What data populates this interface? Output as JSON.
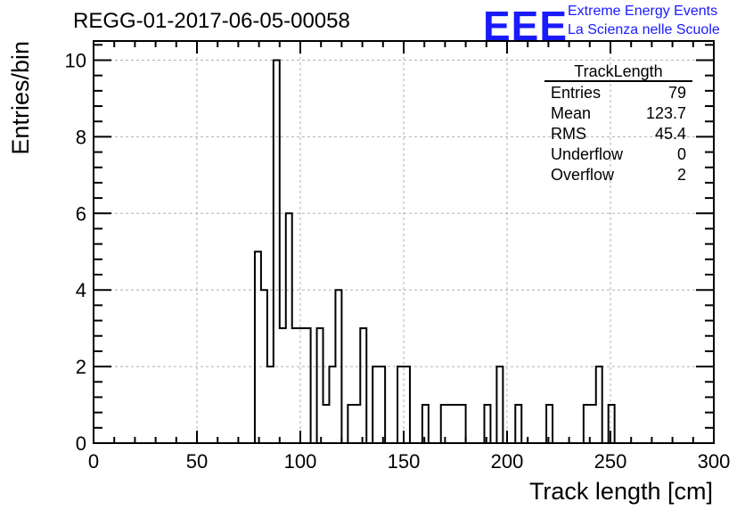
{
  "header": {
    "run_title": "REGG-01-2017-06-05-00058",
    "logo_text": "EEE",
    "brand_line1": "Extreme Energy Events",
    "brand_line2": "La Scienza nelle Scuole"
  },
  "stats": {
    "title": "TrackLength",
    "rows": [
      {
        "label": "Entries",
        "value": "79"
      },
      {
        "label": "Mean",
        "value": "123.7"
      },
      {
        "label": "RMS",
        "value": "45.4"
      },
      {
        "label": "Underflow",
        "value": "0"
      },
      {
        "label": "Overflow",
        "value": "2"
      }
    ]
  },
  "colors": {
    "brand": "#1a1aff",
    "line": "#000000",
    "grid": "#b0b0b0"
  },
  "chart_data": {
    "type": "bar",
    "xlabel": "Track length [cm]",
    "ylabel": "Entries/bin",
    "xlim": [
      0,
      300
    ],
    "ylim": [
      0,
      10.5
    ],
    "grid": true,
    "x_ticks": [
      0,
      50,
      100,
      150,
      200,
      250,
      300
    ],
    "y_ticks": [
      0,
      2,
      4,
      6,
      8,
      10
    ],
    "bin_width": 3,
    "bin_edges_start": [
      78,
      81,
      84,
      87,
      90,
      93,
      96,
      99,
      102,
      105,
      108,
      111,
      114,
      117,
      120,
      123,
      126,
      129,
      132,
      135,
      138,
      141,
      144,
      147,
      150,
      153,
      156,
      159,
      162,
      165,
      168,
      171,
      174,
      177,
      180,
      183,
      186,
      189,
      192,
      195,
      198,
      201,
      204,
      207,
      210,
      213,
      216,
      219,
      222,
      225,
      228,
      231,
      234,
      237,
      240,
      243,
      246,
      249
    ],
    "values": [
      5,
      4,
      2,
      10,
      3,
      6,
      3,
      3,
      3,
      0,
      3,
      1,
      2,
      4,
      0,
      1,
      1,
      3,
      0,
      2,
      2,
      0,
      0,
      2,
      2,
      0,
      0,
      1,
      0,
      0,
      1,
      1,
      1,
      1,
      0,
      0,
      0,
      1,
      0,
      2,
      0,
      0,
      1,
      0,
      0,
      0,
      0,
      1,
      0,
      0,
      0,
      0,
      0,
      1,
      1,
      2,
      0,
      1
    ]
  }
}
